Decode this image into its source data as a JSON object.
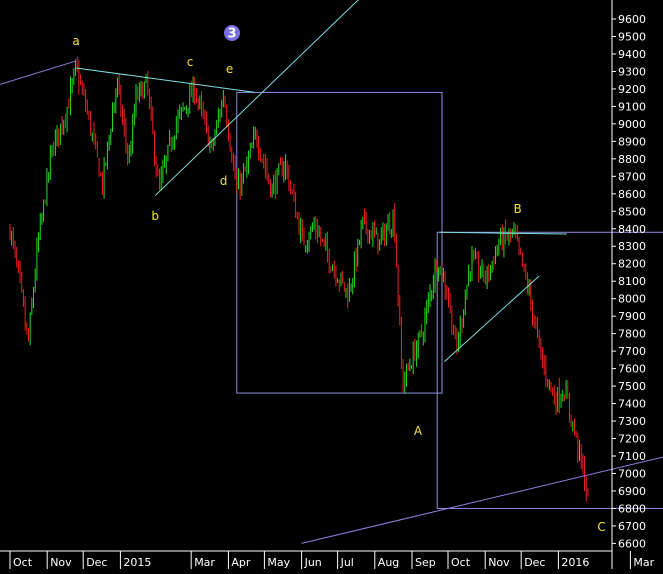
{
  "chart_data": {
    "type": "candlestick",
    "price_axis": {
      "min": 6600,
      "max": 9600,
      "step": 100,
      "ticks": [
        6600,
        6700,
        6800,
        6900,
        7000,
        7100,
        7200,
        7300,
        7400,
        7500,
        7600,
        7700,
        7800,
        7900,
        8000,
        8100,
        8200,
        8300,
        8400,
        8500,
        8600,
        8700,
        8800,
        8900,
        9000,
        9100,
        9200,
        9300,
        9400,
        9500,
        9600
      ]
    },
    "time_axis": {
      "labels": [
        "Oct",
        "Nov",
        "Dec",
        "2015",
        "Mar",
        "Apr",
        "May",
        "Jun",
        "Jul",
        "Aug",
        "Sep",
        "Oct",
        "Nov",
        "Dec",
        "2016",
        "Mar"
      ],
      "start": "2014-10-01",
      "label_dates": [
        "2014-10-01",
        "2014-11-01",
        "2014-12-01",
        "2015-01-01",
        "2015-03-01",
        "2015-04-01",
        "2015-05-01",
        "2015-06-01",
        "2015-07-01",
        "2015-08-01",
        "2015-09-01",
        "2015-10-01",
        "2015-11-01",
        "2015-12-01",
        "2016-01-01",
        "2016-03-01"
      ]
    },
    "price_path": [
      [
        "2014-10-01",
        8400
      ],
      [
        "2014-10-10",
        8050
      ],
      [
        "2014-10-16",
        7730
      ],
      [
        "2014-10-24",
        8300
      ],
      [
        "2014-11-05",
        8850
      ],
      [
        "2014-11-18",
        9100
      ],
      [
        "2014-11-25",
        9320
      ],
      [
        "2014-12-05",
        9050
      ],
      [
        "2014-12-17",
        8650
      ],
      [
        "2014-12-29",
        9240
      ],
      [
        "2015-01-08",
        8780
      ],
      [
        "2015-01-14",
        9150
      ],
      [
        "2015-01-23",
        9230
      ],
      [
        "2015-02-02",
        8620
      ],
      [
        "2015-02-16",
        9000
      ],
      [
        "2015-03-04",
        9200
      ],
      [
        "2015-03-18",
        8850
      ],
      [
        "2015-03-28",
        9170
      ],
      [
        "2015-04-08",
        8620
      ],
      [
        "2015-04-15",
        8720
      ],
      [
        "2015-04-24",
        8940
      ],
      [
        "2015-05-07",
        8620
      ],
      [
        "2015-05-18",
        8780
      ],
      [
        "2015-06-02",
        8320
      ],
      [
        "2015-06-12",
        8420
      ],
      [
        "2015-06-26",
        8200
      ],
      [
        "2015-07-10",
        8020
      ],
      [
        "2015-07-22",
        8430
      ],
      [
        "2015-08-05",
        8320
      ],
      [
        "2015-08-17",
        8480
      ],
      [
        "2015-08-24",
        7510
      ],
      [
        "2015-09-04",
        7710
      ],
      [
        "2015-09-10",
        7820
      ],
      [
        "2015-09-22",
        8230
      ],
      [
        "2015-10-01",
        8020
      ],
      [
        "2015-10-08",
        7700
      ],
      [
        "2015-10-20",
        8220
      ],
      [
        "2015-11-02",
        8120
      ],
      [
        "2015-11-13",
        8330
      ],
      [
        "2015-11-25",
        8370
      ],
      [
        "2015-12-07",
        8050
      ],
      [
        "2015-12-18",
        7650
      ],
      [
        "2015-12-29",
        7420
      ],
      [
        "2016-01-06",
        7480
      ],
      [
        "2016-01-14",
        7250
      ],
      [
        "2016-01-22",
        7000
      ],
      [
        "2016-01-26",
        6830
      ]
    ],
    "annotations": [
      {
        "label": "a",
        "date": "2014-11-25",
        "price": 9450
      },
      {
        "label": "b",
        "date": "2015-01-30",
        "price": 8450
      },
      {
        "label": "c",
        "date": "2015-02-28",
        "price": 9330
      },
      {
        "label": "d",
        "date": "2015-03-28",
        "price": 8650
      },
      {
        "label": "e",
        "date": "2015-04-02",
        "price": 9290
      },
      {
        "label": "A",
        "date": "2015-09-06",
        "price": 7220
      },
      {
        "label": "B",
        "date": "2015-11-28",
        "price": 8490
      },
      {
        "label": "C",
        "date": "2016-02-06",
        "price": 6670
      }
    ],
    "wave_badge": {
      "label": "3",
      "date": "2015-04-04",
      "price": 9520
    },
    "trendlines": [
      {
        "color": "#7fdede",
        "from": [
          "2014-11-25",
          9320
        ],
        "to": [
          "2015-04-23",
          9180
        ]
      },
      {
        "color": "#7fdede",
        "from": [
          "2015-01-30",
          8590
        ],
        "to": [
          "2015-10-08",
          10250
        ]
      },
      {
        "color": "#7fdede",
        "from": [
          "2015-09-24",
          8380
        ],
        "to": [
          "2016-01-08",
          8370
        ]
      },
      {
        "color": "#7fdede",
        "from": [
          "2015-09-28",
          7640
        ],
        "to": [
          "2015-12-16",
          8130
        ]
      },
      {
        "color": "#8f7fe0",
        "from": [
          "2014-09-01",
          9180
        ],
        "to": [
          "2014-11-25",
          9360
        ]
      },
      {
        "color": "#8f7fe0",
        "from": [
          "2015-06-01",
          6600
        ],
        "to": [
          "2016-04-01",
          7100
        ]
      }
    ],
    "boxes": [
      {
        "color": "#8f8fe0",
        "from": [
          "2015-04-08",
          9180
        ],
        "to": [
          "2015-09-26",
          7460
        ]
      },
      {
        "color": "#8f8fe0",
        "from": [
          "2015-09-22",
          8380
        ],
        "to": [
          "2016-04-01",
          6800
        ]
      }
    ],
    "colors": {
      "background": "#000000",
      "up": "#22dd22",
      "down": "#ee2222",
      "text": "#ffffff",
      "wave_label": "#f2e33a",
      "badge": "#7a6fe0"
    },
    "grid": false
  }
}
